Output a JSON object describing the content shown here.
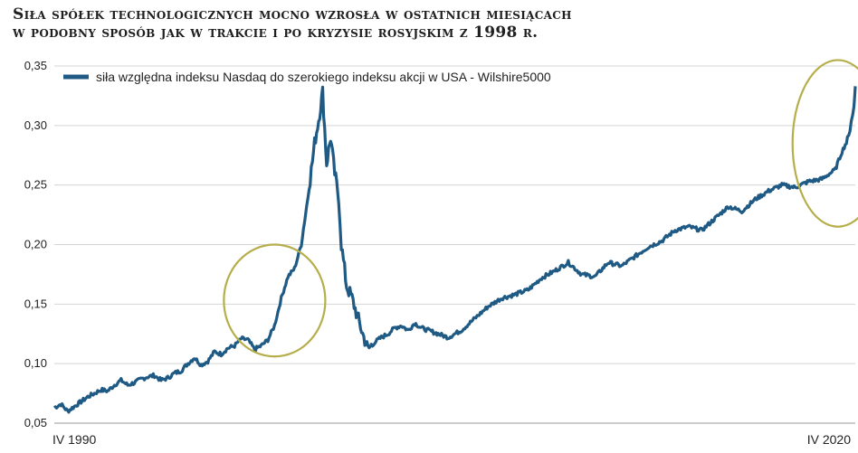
{
  "chart_data": {
    "type": "line",
    "title_line1": "Siła spółek technologicznych mocno wzrosła w ostatnich miesiącach",
    "title_line2": "w podobny sposób jak w trakcie i po kryzysie rosyjskim z 1998 r.",
    "xlabel": "",
    "ylabel": "",
    "x_tick_labels": [
      "IV 1990",
      "IV 2020"
    ],
    "y_ticks": [
      "0,05",
      "0,10",
      "0,15",
      "0,20",
      "0,25",
      "0,30",
      "0,35"
    ],
    "ylim": [
      0.05,
      0.35
    ],
    "xlim": [
      1990.25,
      2020.25
    ],
    "grid": "horizontal",
    "legend_position": "top-left",
    "series": [
      {
        "name": "siła względna indeksu Nasdaq do szerokiego indeksu akcji w USA - Wilshire5000",
        "color": "#1f5a84",
        "x": [
          1990.25,
          1990.5,
          1990.75,
          1991.0,
          1991.25,
          1991.5,
          1991.75,
          1992.0,
          1992.25,
          1992.5,
          1992.75,
          1993.0,
          1993.25,
          1993.5,
          1993.75,
          1994.0,
          1994.25,
          1994.5,
          1994.75,
          1995.0,
          1995.25,
          1995.5,
          1995.75,
          1996.0,
          1996.25,
          1996.5,
          1996.75,
          1997.0,
          1997.25,
          1997.5,
          1997.75,
          1998.0,
          1998.25,
          1998.5,
          1998.75,
          1999.0,
          1999.25,
          1999.5,
          1999.75,
          2000.0,
          2000.15,
          2000.3,
          2000.45,
          2000.6,
          2000.75,
          2000.9,
          2001.0,
          2001.2,
          2001.4,
          2001.6,
          2001.8,
          2002.0,
          2002.25,
          2002.5,
          2002.75,
          2003.0,
          2003.25,
          2003.5,
          2003.75,
          2004.0,
          2004.5,
          2005.0,
          2005.5,
          2006.0,
          2006.5,
          2007.0,
          2007.5,
          2008.0,
          2008.5,
          2009.0,
          2009.5,
          2010.0,
          2010.5,
          2011.0,
          2011.5,
          2012.0,
          2012.5,
          2013.0,
          2013.5,
          2014.0,
          2014.5,
          2015.0,
          2015.5,
          2016.0,
          2016.5,
          2017.0,
          2017.5,
          2018.0,
          2018.5,
          2019.0,
          2019.5,
          2019.75,
          2020.0,
          2020.1,
          2020.2,
          2020.25
        ],
        "values": [
          0.063,
          0.066,
          0.06,
          0.064,
          0.068,
          0.072,
          0.075,
          0.078,
          0.077,
          0.082,
          0.086,
          0.082,
          0.084,
          0.087,
          0.089,
          0.09,
          0.086,
          0.088,
          0.092,
          0.094,
          0.1,
          0.105,
          0.099,
          0.102,
          0.11,
          0.108,
          0.113,
          0.115,
          0.121,
          0.12,
          0.112,
          0.115,
          0.12,
          0.132,
          0.155,
          0.173,
          0.18,
          0.2,
          0.24,
          0.285,
          0.305,
          0.328,
          0.268,
          0.29,
          0.26,
          0.24,
          0.2,
          0.165,
          0.155,
          0.14,
          0.125,
          0.112,
          0.118,
          0.122,
          0.125,
          0.13,
          0.132,
          0.128,
          0.134,
          0.13,
          0.126,
          0.122,
          0.128,
          0.138,
          0.148,
          0.155,
          0.158,
          0.162,
          0.172,
          0.178,
          0.185,
          0.175,
          0.173,
          0.185,
          0.182,
          0.19,
          0.198,
          0.203,
          0.212,
          0.215,
          0.212,
          0.222,
          0.232,
          0.228,
          0.238,
          0.245,
          0.25,
          0.248,
          0.253,
          0.255,
          0.263,
          0.278,
          0.29,
          0.305,
          0.315,
          0.333
        ]
      }
    ]
  },
  "annotations": {
    "ellipse_color": "#b5ae4a",
    "ellipses": [
      {
        "center_x": 1998.5,
        "center_y": 0.153,
        "rx_years": 1.9,
        "ry_value": 0.047
      },
      {
        "center_x": 2019.6,
        "center_y": 0.285,
        "rx_years": 1.7,
        "ry_value": 0.07
      }
    ]
  }
}
